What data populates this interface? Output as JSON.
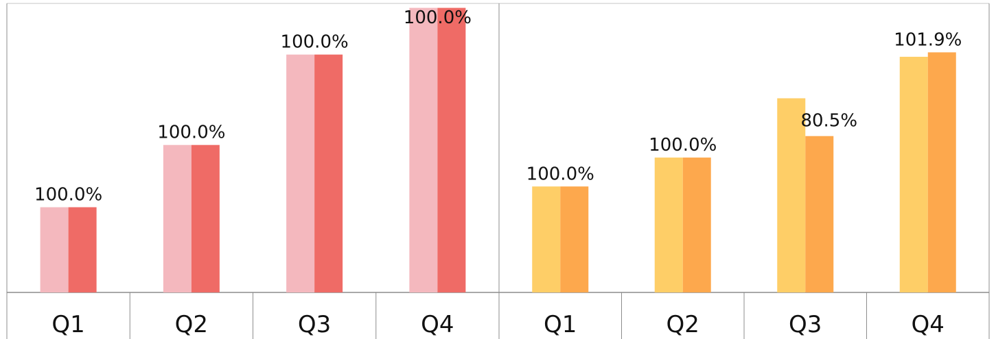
{
  "chart_data": [
    {
      "type": "bar",
      "categories": [
        "Q1",
        "Q2",
        "Q3",
        "Q4"
      ],
      "series": [
        {
          "values": [
            115,
            199,
            321,
            384
          ],
          "color": "#F4B8BE"
        },
        {
          "values": [
            115,
            199,
            321,
            384
          ],
          "color": "#EF6B66"
        }
      ],
      "data_labels": [
        "100.0%",
        "100.0%",
        "100.0%",
        "100.0%"
      ],
      "ylim": [
        0,
        390
      ],
      "grid": false
    },
    {
      "type": "bar",
      "categories": [
        "Q1",
        "Q2",
        "Q3",
        "Q4"
      ],
      "series": [
        {
          "values": [
            143,
            182,
            262,
            318
          ],
          "color": "#FECE67"
        },
        {
          "values": [
            143,
            182,
            211,
            324
          ],
          "color": "#FDA84D"
        }
      ],
      "data_labels": [
        "100.0%",
        "100.0%",
        "80.5%",
        "101.9%"
      ],
      "ylim": [
        0,
        390
      ],
      "grid": false
    }
  ]
}
